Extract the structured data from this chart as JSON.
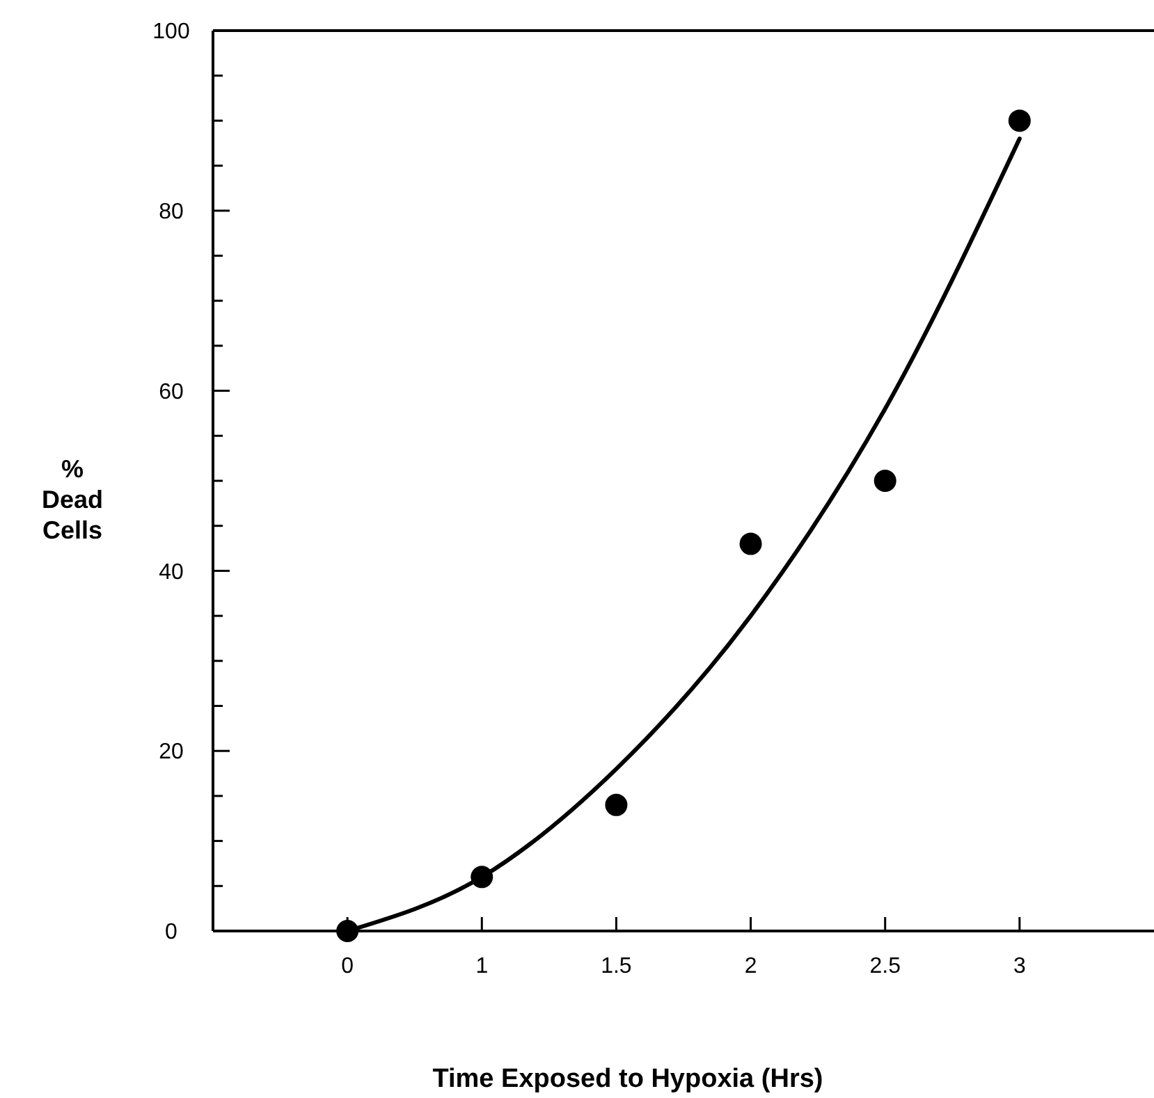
{
  "chart_data": {
    "type": "scatter",
    "xlabel": "Time Exposed to Hypoxia (Hrs)",
    "ylabel": "%\nDead\nCells",
    "categories": [
      "0",
      "1",
      "1.5",
      "2",
      "2.5",
      "3"
    ],
    "series": [
      {
        "color": "#000000",
        "values": [
          0,
          6,
          14,
          43,
          50,
          90
        ],
        "marker": "circle"
      },
      {
        "type": "line",
        "color": "#000000",
        "values": [
          0,
          6,
          18,
          35,
          58,
          88
        ],
        "marker": "none",
        "line_style": "solid"
      }
    ],
    "ylim": [
      0,
      100
    ],
    "yticks": [
      0,
      {
        "value": 5,
        "label": null
      },
      {
        "value": 10,
        "label": null
      },
      {
        "value": 15,
        "label": null
      },
      20,
      {
        "value": 25,
        "label": null
      },
      {
        "value": 30,
        "label": null
      },
      {
        "value": 35,
        "label": null
      },
      40,
      {
        "value": 45,
        "label": null
      },
      {
        "value": 50,
        "label": null
      },
      {
        "value": 55,
        "label": null
      },
      60,
      {
        "value": 65,
        "label": null
      },
      {
        "value": 70,
        "label": null
      },
      {
        "value": 75,
        "label": null
      },
      80,
      {
        "value": 85,
        "label": null
      },
      {
        "value": 90,
        "label": null
      },
      {
        "value": 95,
        "label": null
      },
      100
    ],
    "grid": false
  }
}
